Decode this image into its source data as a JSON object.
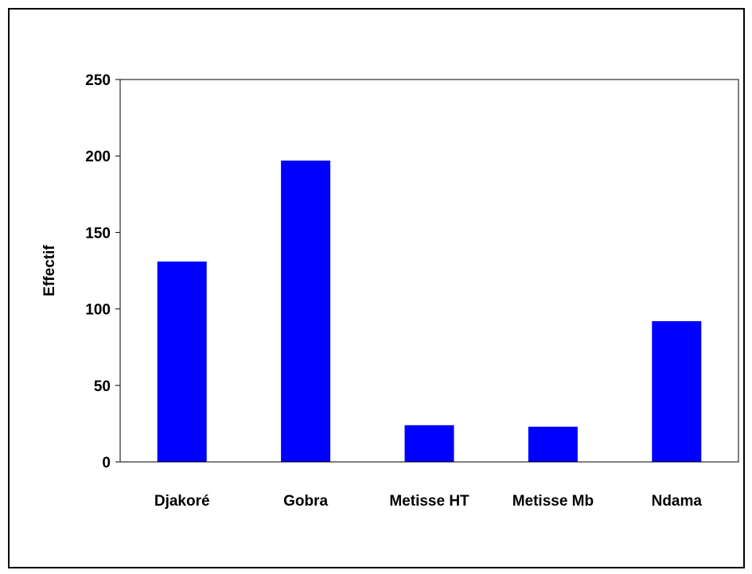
{
  "chart_data": {
    "type": "bar",
    "title": "",
    "xlabel": "",
    "ylabel": "Effectif",
    "categories": [
      "Djakoré",
      "Gobra",
      "Metisse HT",
      "Metisse Mb",
      "Ndama"
    ],
    "values": [
      131,
      197,
      24,
      23,
      92
    ],
    "ylim": [
      0,
      250
    ],
    "yticks": [
      0,
      50,
      100,
      150,
      200,
      250
    ],
    "grid": false,
    "legend": "none",
    "bar_color": "#0000FF"
  }
}
